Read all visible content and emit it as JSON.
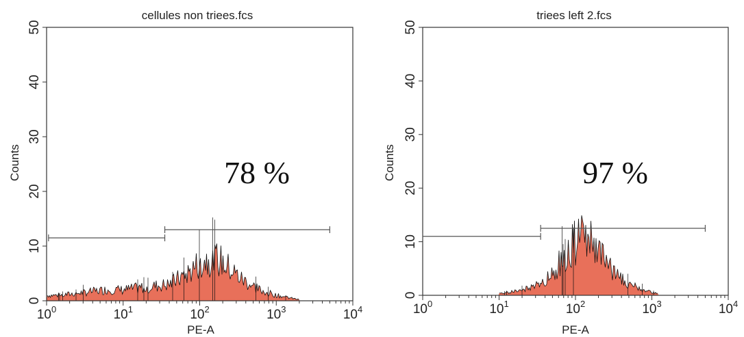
{
  "chart_data": [
    {
      "type": "histogram",
      "title": "cellules non triees.fcs",
      "xlabel": "PE-A",
      "ylabel": "Counts",
      "xscale": "log",
      "xlim": [
        1,
        10000
      ],
      "ylim": [
        0,
        50
      ],
      "x_ticks": [
        {
          "base": "10",
          "exp": "0"
        },
        {
          "base": "10",
          "exp": "1"
        },
        {
          "base": "10",
          "exp": "2"
        },
        {
          "base": "10",
          "exp": "3"
        },
        {
          "base": "10",
          "exp": "4"
        }
      ],
      "y_ticks": [
        0,
        10,
        20,
        30,
        40,
        50
      ],
      "annotation": "78 %",
      "gates": [
        {
          "x_start": 1.06,
          "x_end": 35,
          "y": 11.5
        },
        {
          "x_start": 35,
          "x_end": 5000,
          "y": 13
        }
      ],
      "histogram_envelope": [
        {
          "x": 1,
          "y": 1
        },
        {
          "x": 1.5,
          "y": 1
        },
        {
          "x": 3,
          "y": 1.5
        },
        {
          "x": 6,
          "y": 2
        },
        {
          "x": 10,
          "y": 2
        },
        {
          "x": 20,
          "y": 2.5
        },
        {
          "x": 40,
          "y": 3
        },
        {
          "x": 70,
          "y": 5
        },
        {
          "x": 100,
          "y": 7
        },
        {
          "x": 150,
          "y": 8
        },
        {
          "x": 200,
          "y": 7
        },
        {
          "x": 350,
          "y": 4
        },
        {
          "x": 600,
          "y": 2
        },
        {
          "x": 1000,
          "y": 1
        },
        {
          "x": 2000,
          "y": 0.2
        }
      ]
    },
    {
      "type": "histogram",
      "title": "triees left 2.fcs",
      "xlabel": "PE-A",
      "ylabel": "Counts",
      "xscale": "log",
      "xlim": [
        1,
        10000
      ],
      "ylim": [
        0,
        50
      ],
      "x_ticks": [
        {
          "base": "10",
          "exp": "0"
        },
        {
          "base": "10",
          "exp": "1"
        },
        {
          "base": "10",
          "exp": "2"
        },
        {
          "base": "10",
          "exp": "3"
        },
        {
          "base": "10",
          "exp": "4"
        }
      ],
      "y_ticks": [
        0,
        10,
        20,
        30,
        40,
        50
      ],
      "annotation": "97 %",
      "gates": [
        {
          "x_start": 1,
          "x_end": 35,
          "y": 11
        },
        {
          "x_start": 35,
          "x_end": 5000,
          "y": 12.5
        }
      ],
      "histogram_envelope": [
        {
          "x": 10,
          "y": 0.3
        },
        {
          "x": 20,
          "y": 1
        },
        {
          "x": 35,
          "y": 2
        },
        {
          "x": 50,
          "y": 4
        },
        {
          "x": 70,
          "y": 7
        },
        {
          "x": 100,
          "y": 10
        },
        {
          "x": 130,
          "y": 11
        },
        {
          "x": 160,
          "y": 10
        },
        {
          "x": 200,
          "y": 8
        },
        {
          "x": 300,
          "y": 5
        },
        {
          "x": 500,
          "y": 2
        },
        {
          "x": 800,
          "y": 1
        },
        {
          "x": 1200,
          "y": 0.3
        }
      ]
    }
  ],
  "colors": {
    "fill": "#e8705a",
    "outline": "#111111",
    "axis": "#333333",
    "gate": "#555555"
  }
}
